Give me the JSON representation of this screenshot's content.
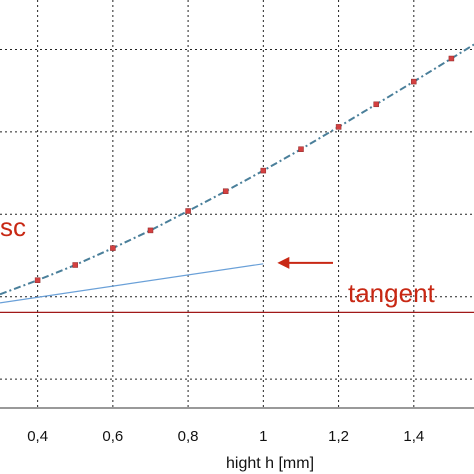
{
  "chart_data": {
    "type": "line",
    "xlabel": "hight h [mm]",
    "xlim": [
      0.3,
      1.56
    ],
    "ylim": [
      0.73,
      1.72
    ],
    "grid": true,
    "x_ticks": [
      {
        "value": 0.4,
        "label": "0,4"
      },
      {
        "value": 0.6,
        "label": "0,6"
      },
      {
        "value": 0.8,
        "label": "0,8"
      },
      {
        "value": 1.0,
        "label": "1"
      },
      {
        "value": 1.2,
        "label": "1,2"
      },
      {
        "value": 1.4,
        "label": "1,4"
      }
    ],
    "y_grid": [
      0.8,
      1.0,
      1.2,
      1.4,
      1.6
    ],
    "series": [
      {
        "key": "curve",
        "color": "#4a7f9a",
        "marker_color": "#d44040",
        "x": [
          0.3,
          0.4,
          0.5,
          0.6,
          0.7,
          0.8,
          0.9,
          1.0,
          1.1,
          1.2,
          1.3,
          1.4,
          1.5,
          1.56
        ],
        "y": [
          1.006,
          1.04,
          1.077,
          1.118,
          1.161,
          1.208,
          1.256,
          1.306,
          1.358,
          1.412,
          1.467,
          1.522,
          1.578,
          1.612
        ]
      },
      {
        "key": "tangent",
        "color": "#6aa0d8",
        "x": [
          0.3,
          1.0
        ],
        "y": [
          0.985,
          1.08
        ]
      },
      {
        "key": "baseline",
        "color": "#a01818",
        "x": [
          0.3,
          1.56
        ],
        "y": [
          0.962,
          0.962
        ]
      }
    ],
    "annotations": [
      {
        "key": "tangent",
        "text": "tangent",
        "color": "#c82814",
        "arrow_to": [
          1.0,
          1.082
        ]
      },
      {
        "key": "sc",
        "text": "sc",
        "color": "#c82814"
      }
    ]
  }
}
